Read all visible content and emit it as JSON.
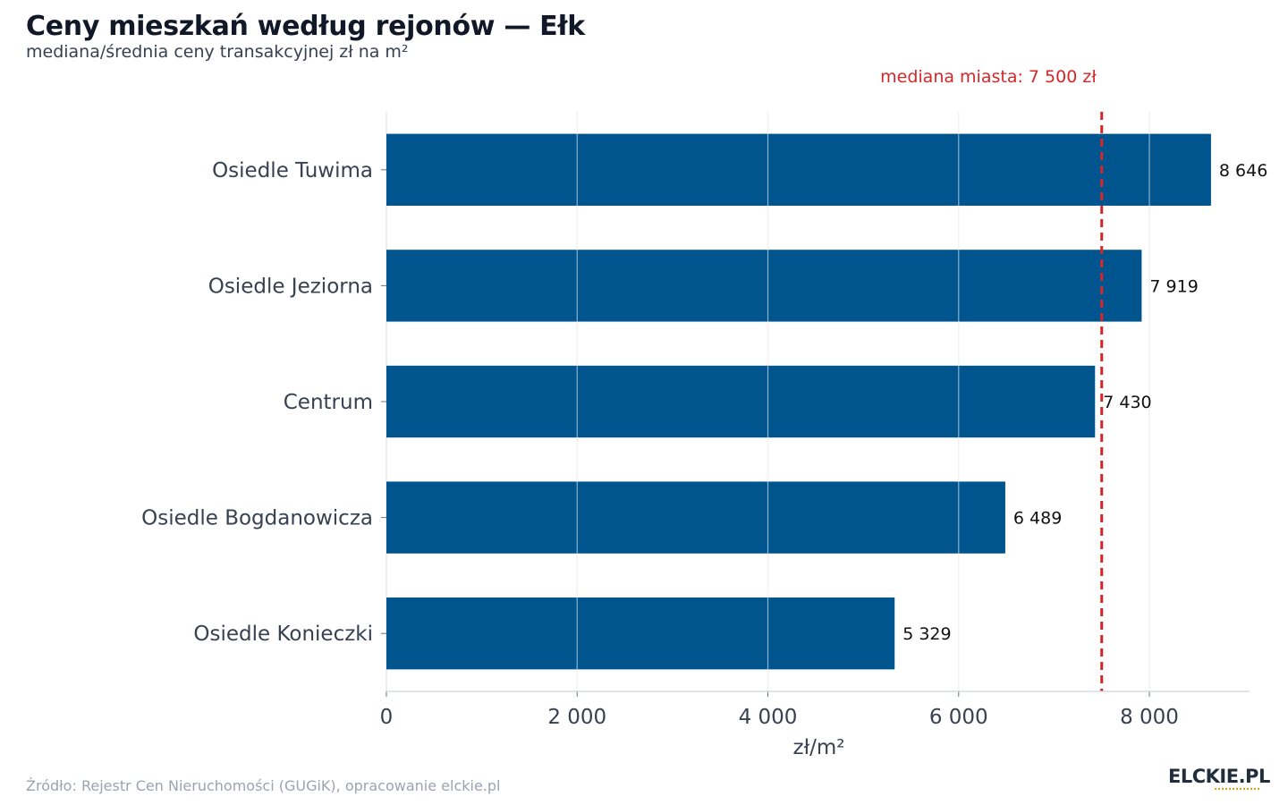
{
  "title": "Ceny mieszkań według rejonów — Ełk",
  "subtitle": "mediana/średnia ceny transakcyjnej zł na m²",
  "source": "Źródło: Rejestr Cen Nieruchomości (GUGiK), opracowanie elckie.pl",
  "logo": "ELCKIE.PL",
  "colors": {
    "bar": "#00558f",
    "reference": "#d62728",
    "grid": "#e5e7eb",
    "category_label": "#374151",
    "value_label": "#111111"
  },
  "chart_data": {
    "type": "bar",
    "orientation": "horizontal",
    "categories": [
      "Osiedle Tuwima",
      "Osiedle Jeziorna",
      "Centrum",
      "Osiedle Bogdanowicza",
      "Osiedle Konieczki"
    ],
    "values": [
      8646,
      7919,
      7430,
      6489,
      5329
    ],
    "value_labels": [
      "8 646",
      "7 919",
      "7 430",
      "6 489",
      "5 329"
    ],
    "xlabel": "zł/m²",
    "ylabel": "",
    "xlim": [
      0,
      9050
    ],
    "xticks": [
      0,
      2000,
      4000,
      6000,
      8000
    ],
    "xtick_labels": [
      "0",
      "2 000",
      "4 000",
      "6 000",
      "8 000"
    ],
    "grid": true,
    "reference_line": {
      "value": 7500,
      "label": "mediana miasta: 7 500 zł"
    }
  }
}
